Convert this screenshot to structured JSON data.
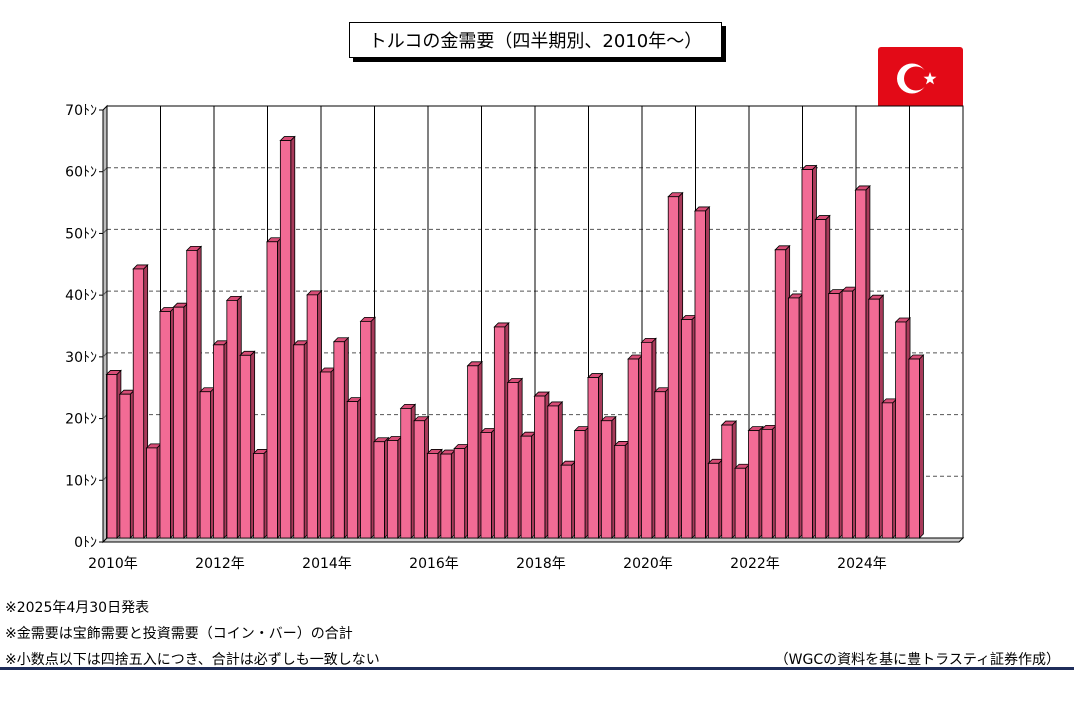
{
  "title": "トルコの金需要（四半期別、2010年～）",
  "flag": {
    "name": "turkey-flag-icon",
    "color": "#e30a17"
  },
  "notes": [
    "※2025年4月30日発表",
    "※金需要は宝飾需要と投資需要（コイン・バー）の合計",
    "※小数点以下は四捨五入につき、合計は必ずしも一致しない"
  ],
  "credit": "（WGCの資料を基に豊トラスティ証券作成）",
  "colors": {
    "bar_front": "#f26b95",
    "bar_side": "#a83a5a",
    "bar_top": "#d84d77",
    "accent_line": "#1f2d5a"
  },
  "chart_data": {
    "type": "bar",
    "title": "トルコの金需要（四半期別、2010年～）",
    "ylabel": "",
    "ylim": [
      0,
      70
    ],
    "y_ticks": [
      0,
      10,
      20,
      30,
      40,
      50,
      60,
      70
    ],
    "y_tick_labels": [
      "0ﾄﾝ",
      "10ﾄﾝ",
      "20ﾄﾝ",
      "30ﾄﾝ",
      "40ﾄﾝ",
      "50ﾄﾝ",
      "60ﾄﾝ",
      "70ﾄﾝ"
    ],
    "x_tick_labels": [
      "2010年",
      "2012年",
      "2014年",
      "2016年",
      "2018年",
      "2020年",
      "2022年",
      "2024年"
    ],
    "grid": true,
    "categories": [
      "2010Q1",
      "2010Q2",
      "2010Q3",
      "2010Q4",
      "2011Q1",
      "2011Q2",
      "2011Q3",
      "2011Q4",
      "2012Q1",
      "2012Q2",
      "2012Q3",
      "2012Q4",
      "2013Q1",
      "2013Q2",
      "2013Q3",
      "2013Q4",
      "2014Q1",
      "2014Q2",
      "2014Q3",
      "2014Q4",
      "2015Q1",
      "2015Q2",
      "2015Q3",
      "2015Q4",
      "2016Q1",
      "2016Q2",
      "2016Q3",
      "2016Q4",
      "2017Q1",
      "2017Q2",
      "2017Q3",
      "2017Q4",
      "2018Q1",
      "2018Q2",
      "2018Q3",
      "2018Q4",
      "2019Q1",
      "2019Q2",
      "2019Q3",
      "2019Q4",
      "2020Q1",
      "2020Q2",
      "2020Q3",
      "2020Q4",
      "2021Q1",
      "2021Q2",
      "2021Q3",
      "2021Q4",
      "2022Q1",
      "2022Q2",
      "2022Q3",
      "2022Q4",
      "2023Q1",
      "2023Q2",
      "2023Q3",
      "2023Q4",
      "2024Q1",
      "2024Q2",
      "2024Q3",
      "2024Q4",
      "2025Q1",
      "2025Q2",
      "2025Q3",
      "2025Q4"
    ],
    "values": [
      26.5,
      23.3,
      43.6,
      14.6,
      36.7,
      37.4,
      46.6,
      23.7,
      31.3,
      38.5,
      29.6,
      13.7,
      48.0,
      64.4,
      31.3,
      39.4,
      26.9,
      31.8,
      22.1,
      35.1,
      15.6,
      15.8,
      21.0,
      19.0,
      13.7,
      13.6,
      14.5,
      27.9,
      17.1,
      34.2,
      25.2,
      16.5,
      23.0,
      21.4,
      11.8,
      17.4,
      26.0,
      19.0,
      15.0,
      29.0,
      31.7,
      23.7,
      55.3,
      35.4,
      53.0,
      12.1,
      18.3,
      11.3,
      17.4,
      17.6,
      46.7,
      38.9,
      59.7,
      51.6,
      39.6,
      40.0,
      56.4,
      38.7,
      21.9,
      35.0,
      29.0,
      null,
      null,
      null
    ]
  }
}
